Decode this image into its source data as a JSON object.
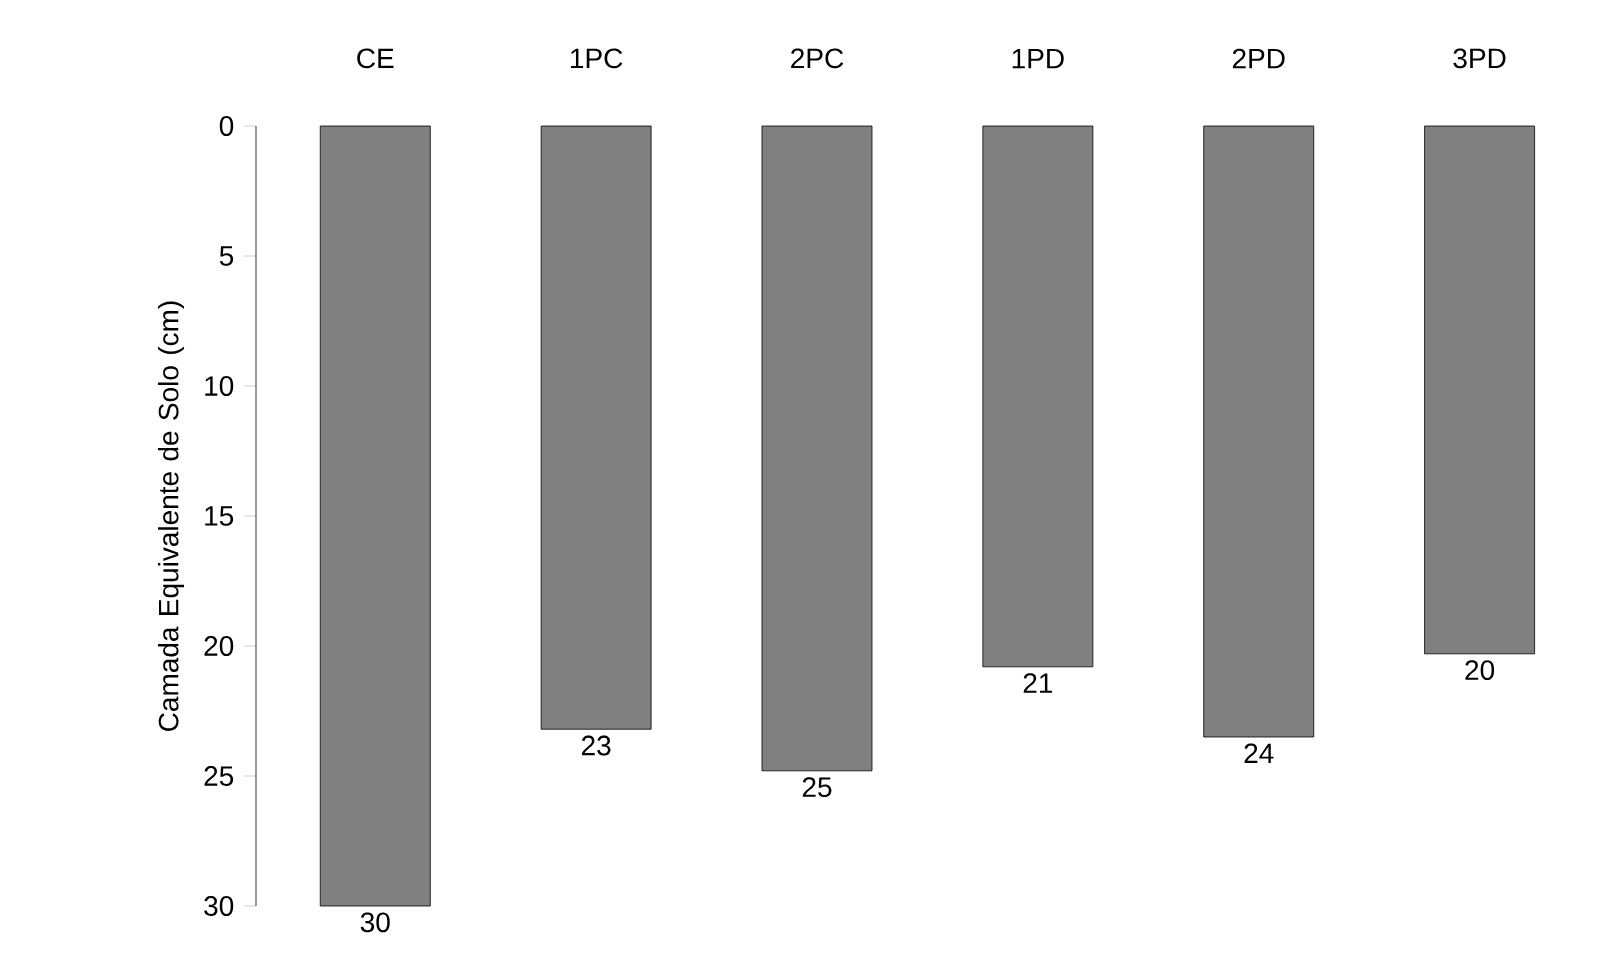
{
  "chart_data": {
    "type": "bar",
    "ylabel": "Camada Equivalente de Solo (cm)",
    "categories": [
      "CE",
      "1PC",
      "2PC",
      "1PD",
      "2PD",
      "3PD"
    ],
    "values": [
      30,
      23.2,
      24.8,
      20.8,
      23.5,
      20.3
    ],
    "value_labels": [
      "30",
      "23",
      "25",
      "21",
      "24",
      "20"
    ],
    "color": "#808080",
    "ylim": [
      30,
      0
    ],
    "yticks": [
      0,
      5,
      10,
      15,
      20,
      25,
      30
    ],
    "grid": false
  }
}
